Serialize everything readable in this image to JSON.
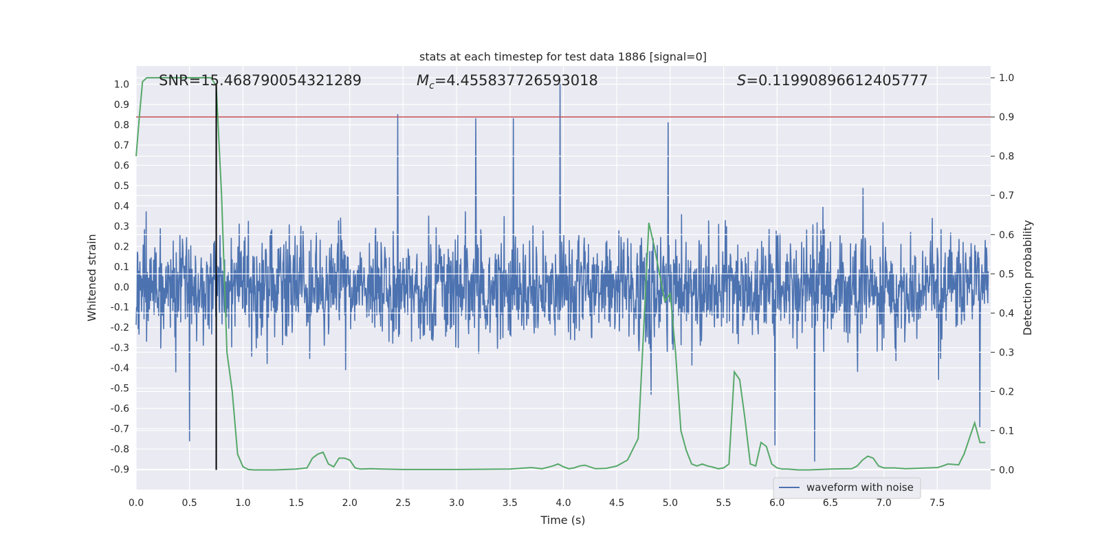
{
  "chart_data": {
    "type": "line",
    "title": "stats at each timestep for test data 1886 [signal=0]",
    "xlabel": "Time (s)",
    "ylabel_left": "Whitened strain",
    "ylabel_right": "Detection probability",
    "xlim": [
      0.0,
      8.0
    ],
    "ylim_left": [
      -1.0,
      1.09
    ],
    "ylim_right": [
      -0.05,
      1.03
    ],
    "x_ticks": [
      0.0,
      0.5,
      1.0,
      1.5,
      2.0,
      2.5,
      3.0,
      3.5,
      4.0,
      4.5,
      5.0,
      5.5,
      6.0,
      6.5,
      7.0,
      7.5
    ],
    "y_ticks_left": [
      -0.9,
      -0.8,
      -0.7,
      -0.6,
      -0.5,
      -0.4,
      -0.3,
      -0.2,
      -0.1,
      0.0,
      0.1,
      0.2,
      0.3,
      0.4,
      0.5,
      0.6,
      0.7,
      0.8,
      0.9,
      1.0
    ],
    "y_ticks_right": [
      0.0,
      0.1,
      0.2,
      0.3,
      0.4,
      0.5,
      0.6,
      0.7,
      0.8,
      0.9,
      1.0
    ],
    "annotations": {
      "snr": "SNR=15.468790054321289",
      "mc_prefix": "M",
      "mc_sub": "c",
      "mc_value": "=4.455837726593018",
      "s_prefix": "S",
      "s_value": "=0.11990896612405777"
    },
    "legend": {
      "placement": "lower-right",
      "entries": [
        "waveform with noise"
      ]
    },
    "threshold_line": {
      "axis": "right",
      "y": 0.9,
      "color": "#c44e52"
    },
    "marker_line": {
      "x": 0.75,
      "color": "#000000"
    },
    "series": [
      {
        "name": "waveform with noise",
        "axis": "left",
        "color": "#4c72b0",
        "style": "dense noise waveform",
        "sample_rate": 256,
        "typical_amplitude": 0.45,
        "spike_peaks": [
          {
            "x": 0.5,
            "y": -0.76
          },
          {
            "x": 2.45,
            "y": 0.85
          },
          {
            "x": 3.18,
            "y": 0.83
          },
          {
            "x": 3.53,
            "y": 0.83
          },
          {
            "x": 3.97,
            "y": 1.0
          },
          {
            "x": 4.98,
            "y": 0.81
          },
          {
            "x": 5.98,
            "y": -0.78
          },
          {
            "x": 6.35,
            "y": -0.86
          },
          {
            "x": 7.9,
            "y": -0.69
          }
        ]
      },
      {
        "name": "detection probability",
        "axis": "right",
        "color": "#55a868",
        "x": [
          0.0,
          0.03,
          0.06,
          0.1,
          0.15,
          0.3,
          0.5,
          0.65,
          0.7,
          0.75,
          0.8,
          0.85,
          0.9,
          0.95,
          1.0,
          1.05,
          1.1,
          1.3,
          1.5,
          1.6,
          1.65,
          1.7,
          1.75,
          1.8,
          1.85,
          1.9,
          1.95,
          2.0,
          2.05,
          2.1,
          2.2,
          2.3,
          2.5,
          3.0,
          3.5,
          3.7,
          3.8,
          3.9,
          3.95,
          4.0,
          4.05,
          4.1,
          4.15,
          4.2,
          4.3,
          4.4,
          4.5,
          4.6,
          4.7,
          4.75,
          4.8,
          4.85,
          4.9,
          4.95,
          5.0,
          5.05,
          5.1,
          5.15,
          5.2,
          5.25,
          5.3,
          5.35,
          5.4,
          5.45,
          5.5,
          5.55,
          5.6,
          5.65,
          5.7,
          5.75,
          5.8,
          5.85,
          5.9,
          5.95,
          6.0,
          6.05,
          6.1,
          6.2,
          6.3,
          6.5,
          6.7,
          6.75,
          6.8,
          6.85,
          6.9,
          6.95,
          7.0,
          7.1,
          7.2,
          7.3,
          7.4,
          7.5,
          7.55,
          7.6,
          7.7,
          7.75,
          7.8,
          7.85,
          7.9,
          7.95
        ],
        "y": [
          0.8,
          0.9,
          0.99,
          1.0,
          1.0,
          1.0,
          1.0,
          1.0,
          1.0,
          0.98,
          0.7,
          0.3,
          0.2,
          0.04,
          0.008,
          0.001,
          0.0,
          0.0,
          0.002,
          0.005,
          0.03,
          0.04,
          0.045,
          0.015,
          0.008,
          0.03,
          0.03,
          0.025,
          0.005,
          0.002,
          0.003,
          0.002,
          0.001,
          0.001,
          0.002,
          0.006,
          0.003,
          0.01,
          0.015,
          0.008,
          0.003,
          0.005,
          0.01,
          0.012,
          0.003,
          0.004,
          0.01,
          0.025,
          0.08,
          0.35,
          0.63,
          0.57,
          0.5,
          0.43,
          0.45,
          0.3,
          0.1,
          0.05,
          0.015,
          0.01,
          0.015,
          0.01,
          0.007,
          0.003,
          0.005,
          0.015,
          0.25,
          0.23,
          0.13,
          0.015,
          0.01,
          0.07,
          0.06,
          0.015,
          0.005,
          0.002,
          0.002,
          0.0,
          0.0,
          0.002,
          0.003,
          0.01,
          0.025,
          0.035,
          0.03,
          0.01,
          0.005,
          0.005,
          0.003,
          0.004,
          0.005,
          0.006,
          0.01,
          0.015,
          0.013,
          0.04,
          0.08,
          0.12,
          0.07,
          0.07
        ]
      }
    ]
  }
}
